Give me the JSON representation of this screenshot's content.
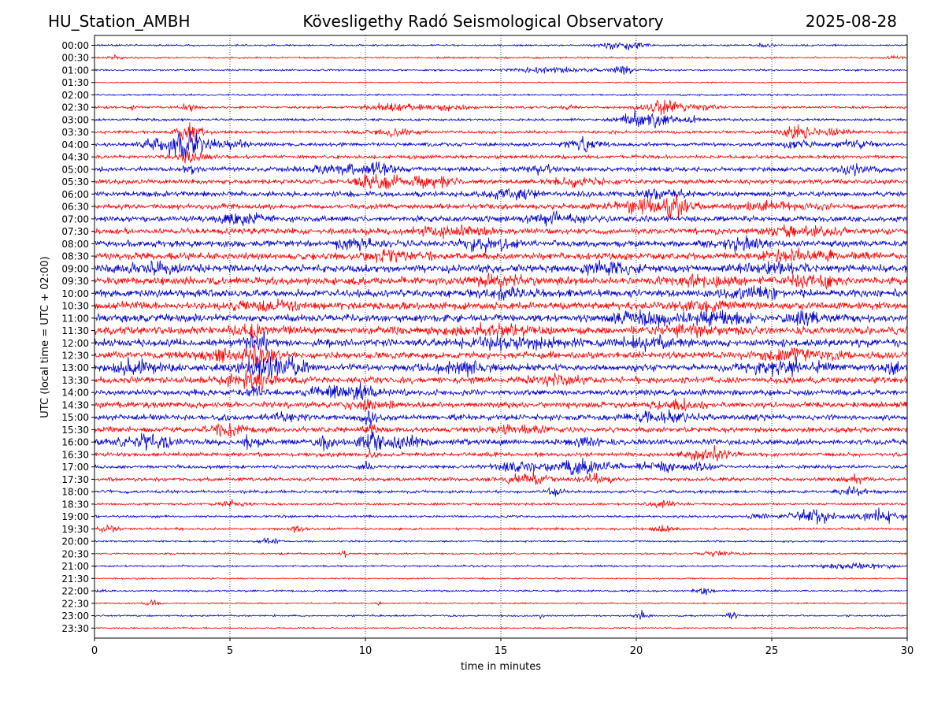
{
  "header": {
    "station": "HU_Station_AMBH",
    "observatory": "Kövesligethy Radó Seismological Observatory",
    "date": "2025-08-28"
  },
  "chart_data": {
    "type": "line",
    "title": "Kövesligethy Radó Seismological Observatory",
    "xlabel": "time in minutes",
    "ylabel": "UTC (local time = UTC + 02:00)",
    "xlim": [
      0,
      30
    ],
    "xticks": [
      "0",
      "5",
      "10",
      "15",
      "20",
      "25",
      "30"
    ],
    "xtick_values": [
      0,
      5,
      10,
      15,
      20,
      25,
      30
    ],
    "grid": "vertical dotted at x ticks",
    "trace_colors": [
      "#0000cc",
      "#ff0000"
    ],
    "rows": [
      {
        "label": "00:00",
        "base": 0.3,
        "events": [
          [
            19.5,
            0.8,
            1.3
          ],
          [
            24.8,
            0.3,
            1.0
          ]
        ]
      },
      {
        "label": "00:30",
        "base": 0.3,
        "events": [
          [
            0.8,
            0.3,
            0.6
          ],
          [
            29.5,
            0.3,
            0.5
          ]
        ]
      },
      {
        "label": "01:00",
        "base": 0.3,
        "events": [
          [
            17.0,
            1.5,
            0.9
          ],
          [
            19.5,
            0.4,
            1.5
          ]
        ]
      },
      {
        "label": "01:30",
        "base": 0.2,
        "events": []
      },
      {
        "label": "02:00",
        "base": 0.3,
        "events": []
      },
      {
        "label": "02:30",
        "base": 0.4,
        "events": [
          [
            1.4,
            0.1,
            2.0
          ],
          [
            3.5,
            0.3,
            1.2
          ],
          [
            11.0,
            1.0,
            1.2
          ],
          [
            13.0,
            0.8,
            1.0
          ],
          [
            17.5,
            0.3,
            1.0
          ],
          [
            21.0,
            0.8,
            2.0
          ],
          [
            22.5,
            0.5,
            1.0
          ]
        ]
      },
      {
        "label": "03:00",
        "base": 0.4,
        "events": [
          [
            20.5,
            0.8,
            2.5
          ],
          [
            19.8,
            0.5,
            1.5
          ],
          [
            22.0,
            0.5,
            1.0
          ]
        ]
      },
      {
        "label": "03:30",
        "base": 0.5,
        "events": [
          [
            3.5,
            0.5,
            3.0
          ],
          [
            11.0,
            0.8,
            1.2
          ],
          [
            25.8,
            0.5,
            2.5
          ],
          [
            27.0,
            0.8,
            1.0
          ]
        ]
      },
      {
        "label": "04:00",
        "base": 0.6,
        "events": [
          [
            3.4,
            0.6,
            5.0
          ],
          [
            2.5,
            0.8,
            2.0
          ],
          [
            5.0,
            1.0,
            1.2
          ],
          [
            18.0,
            0.6,
            2.5
          ],
          [
            26.0,
            0.6,
            1.3
          ],
          [
            28.0,
            0.6,
            1.5
          ]
        ]
      },
      {
        "label": "04:30",
        "base": 0.6,
        "events": [
          [
            3.5,
            0.5,
            2.0
          ]
        ]
      },
      {
        "label": "05:00",
        "base": 0.8,
        "events": [
          [
            10.5,
            0.6,
            2.0
          ],
          [
            9.0,
            1.0,
            1.2
          ],
          [
            16.5,
            0.5,
            1.5
          ],
          [
            28.0,
            0.8,
            1.5
          ],
          [
            3.5,
            0.3,
            2.0
          ]
        ]
      },
      {
        "label": "05:30",
        "base": 0.8,
        "events": [
          [
            10.5,
            0.8,
            2.2
          ],
          [
            12.5,
            0.8,
            2.0
          ],
          [
            18.0,
            1.0,
            1.2
          ]
        ]
      },
      {
        "label": "06:00",
        "base": 0.9,
        "events": [
          [
            15.5,
            1.0,
            1.3
          ],
          [
            21.0,
            1.0,
            1.3
          ]
        ]
      },
      {
        "label": "06:30",
        "base": 0.9,
        "events": [
          [
            21.5,
            0.6,
            3.0
          ],
          [
            20.0,
            1.0,
            1.8
          ],
          [
            25.0,
            1.5,
            1.2
          ]
        ]
      },
      {
        "label": "07:00",
        "base": 1.0,
        "events": [
          [
            5.5,
            1.0,
            1.4
          ],
          [
            17.0,
            1.0,
            1.6
          ]
        ]
      },
      {
        "label": "07:30",
        "base": 1.0,
        "events": [
          [
            13.0,
            1.5,
            1.3
          ],
          [
            26.0,
            1.5,
            1.4
          ]
        ]
      },
      {
        "label": "08:00",
        "base": 1.1,
        "events": [
          [
            14.5,
            0.8,
            2.4
          ],
          [
            9.5,
            0.8,
            1.5
          ],
          [
            24.0,
            1.0,
            1.5
          ]
        ]
      },
      {
        "label": "08:30",
        "base": 1.2,
        "events": [
          [
            26.0,
            1.5,
            1.5
          ],
          [
            11.0,
            1.0,
            1.3
          ]
        ]
      },
      {
        "label": "09:00",
        "base": 1.3,
        "events": [
          [
            2.0,
            1.0,
            1.6
          ],
          [
            19.0,
            1.0,
            1.4
          ],
          [
            25.0,
            1.0,
            1.5
          ]
        ]
      },
      {
        "label": "09:30",
        "base": 1.3,
        "events": [
          [
            15.0,
            1.0,
            1.4
          ],
          [
            22.5,
            1.0,
            1.8
          ],
          [
            26.5,
            1.0,
            1.5
          ]
        ]
      },
      {
        "label": "10:00",
        "base": 1.3,
        "events": [
          [
            15.0,
            1.0,
            1.3
          ],
          [
            24.5,
            1.0,
            1.4
          ]
        ]
      },
      {
        "label": "10:30",
        "base": 1.3,
        "events": [
          [
            6.5,
            1.2,
            1.3
          ],
          [
            22.5,
            1.0,
            1.5
          ]
        ]
      },
      {
        "label": "11:00",
        "base": 1.3,
        "events": [
          [
            20.5,
            1.0,
            2.5
          ],
          [
            23.0,
            1.0,
            1.8
          ],
          [
            26.0,
            1.0,
            1.5
          ]
        ]
      },
      {
        "label": "11:30",
        "base": 1.3,
        "events": [
          [
            6.0,
            0.8,
            1.8
          ],
          [
            15.0,
            1.5,
            1.5
          ],
          [
            22.0,
            1.0,
            1.4
          ]
        ]
      },
      {
        "label": "12:00",
        "base": 1.3,
        "events": [
          [
            6.0,
            0.5,
            2.5
          ],
          [
            15.5,
            1.5,
            1.8
          ],
          [
            20.5,
            1.0,
            1.4
          ]
        ]
      },
      {
        "label": "12:30",
        "base": 1.2,
        "events": [
          [
            6.0,
            0.6,
            3.5
          ],
          [
            4.5,
            0.8,
            1.5
          ],
          [
            26.0,
            1.5,
            1.5
          ]
        ]
      },
      {
        "label": "13:00",
        "base": 1.2,
        "events": [
          [
            6.2,
            0.8,
            3.5
          ],
          [
            1.5,
            1.0,
            2.0
          ],
          [
            7.5,
            0.6,
            1.8
          ],
          [
            13.5,
            1.0,
            1.6
          ],
          [
            25.5,
            1.5,
            1.8
          ],
          [
            29.5,
            0.4,
            1.6
          ]
        ]
      },
      {
        "label": "13:30",
        "base": 1.1,
        "events": [
          [
            5.5,
            1.0,
            1.7
          ],
          [
            6.0,
            0.3,
            2.0
          ],
          [
            17.0,
            1.0,
            1.2
          ]
        ]
      },
      {
        "label": "14:00",
        "base": 1.0,
        "events": [
          [
            9.0,
            1.0,
            1.9
          ],
          [
            10.0,
            0.4,
            2.0
          ],
          [
            6.0,
            0.3,
            1.5
          ]
        ]
      },
      {
        "label": "14:30",
        "base": 1.0,
        "events": [
          [
            10.0,
            0.8,
            1.4
          ],
          [
            21.5,
            0.8,
            1.3
          ]
        ]
      },
      {
        "label": "15:00",
        "base": 1.0,
        "events": [
          [
            10.2,
            0.3,
            2.8
          ],
          [
            7.0,
            0.5,
            1.4
          ],
          [
            21.0,
            1.0,
            1.4
          ]
        ]
      },
      {
        "label": "15:30",
        "base": 0.9,
        "events": [
          [
            10.2,
            0.2,
            2.0
          ],
          [
            5.0,
            1.0,
            1.3
          ],
          [
            15.5,
            1.0,
            1.3
          ]
        ]
      },
      {
        "label": "16:00",
        "base": 1.0,
        "events": [
          [
            10.3,
            0.5,
            3.0
          ],
          [
            2.0,
            1.0,
            2.0
          ],
          [
            11.5,
            0.6,
            2.0
          ],
          [
            8.5,
            0.3,
            1.8
          ],
          [
            5.8,
            0.3,
            1.8
          ],
          [
            18.0,
            0.5,
            1.4
          ]
        ]
      },
      {
        "label": "16:30",
        "base": 0.7,
        "events": [
          [
            23.0,
            0.6,
            1.8
          ],
          [
            10.2,
            0.2,
            1.4
          ],
          [
            22.0,
            0.6,
            1.2
          ]
        ]
      },
      {
        "label": "17:00",
        "base": 0.6,
        "events": [
          [
            18.0,
            1.2,
            2.5
          ],
          [
            21.0,
            0.8,
            1.8
          ],
          [
            15.5,
            0.8,
            1.4
          ],
          [
            10.0,
            0.2,
            2.0
          ],
          [
            22.5,
            0.5,
            1.3
          ]
        ]
      },
      {
        "label": "17:30",
        "base": 0.6,
        "events": [
          [
            16.0,
            0.8,
            2.0
          ],
          [
            18.5,
            0.6,
            1.4
          ],
          [
            28.0,
            0.6,
            1.2
          ]
        ]
      },
      {
        "label": "18:00",
        "base": 0.5,
        "events": [
          [
            28.0,
            0.5,
            1.5
          ],
          [
            17.0,
            0.3,
            1.2
          ]
        ]
      },
      {
        "label": "18:30",
        "base": 0.4,
        "events": [
          [
            21.0,
            0.5,
            1.1
          ],
          [
            5.0,
            0.5,
            1.0
          ]
        ]
      },
      {
        "label": "19:00",
        "base": 0.4,
        "events": [
          [
            26.5,
            0.8,
            2.5
          ],
          [
            29.0,
            0.9,
            2.0
          ],
          [
            24.5,
            0.4,
            1.0
          ]
        ]
      },
      {
        "label": "19:30",
        "base": 0.4,
        "events": [
          [
            0.5,
            0.3,
            1.5
          ],
          [
            7.5,
            0.2,
            1.2
          ],
          [
            21.0,
            0.4,
            1.2
          ]
        ]
      },
      {
        "label": "20:00",
        "base": 0.3,
        "events": [
          [
            6.5,
            0.4,
            1.2
          ]
        ]
      },
      {
        "label": "20:30",
        "base": 0.3,
        "events": [
          [
            9.2,
            0.1,
            1.4
          ],
          [
            23.0,
            0.8,
            0.8
          ]
        ]
      },
      {
        "label": "21:00",
        "base": 0.3,
        "events": [
          [
            28.0,
            1.5,
            0.8
          ]
        ]
      },
      {
        "label": "21:30",
        "base": 0.25,
        "events": []
      },
      {
        "label": "22:00",
        "base": 0.3,
        "events": [
          [
            22.5,
            0.3,
            1.2
          ],
          [
            0.2,
            0.2,
            0.8
          ]
        ]
      },
      {
        "label": "22:30",
        "base": 0.25,
        "events": [
          [
            2.2,
            0.3,
            1.0
          ],
          [
            10.5,
            0.1,
            1.0
          ]
        ]
      },
      {
        "label": "23:00",
        "base": 0.3,
        "events": [
          [
            20.2,
            0.2,
            1.8
          ],
          [
            23.5,
            0.2,
            1.2
          ],
          [
            16.5,
            0.1,
            1.0
          ]
        ]
      },
      {
        "label": "23:30",
        "base": 0.25,
        "events": []
      }
    ]
  }
}
